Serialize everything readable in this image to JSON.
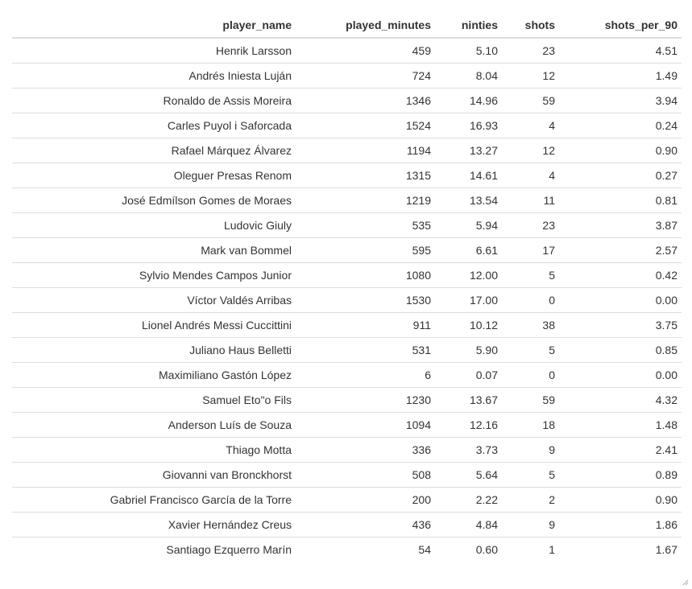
{
  "table": {
    "columns": [
      "player_name",
      "played_minutes",
      "ninties",
      "shots",
      "shots_per_90"
    ],
    "rows": [
      [
        "Henrik Larsson",
        "459",
        "5.10",
        "23",
        "4.51"
      ],
      [
        "Andrés Iniesta Luján",
        "724",
        "8.04",
        "12",
        "1.49"
      ],
      [
        "Ronaldo de Assis Moreira",
        "1346",
        "14.96",
        "59",
        "3.94"
      ],
      [
        "Carles Puyol i Saforcada",
        "1524",
        "16.93",
        "4",
        "0.24"
      ],
      [
        "Rafael Márquez Álvarez",
        "1194",
        "13.27",
        "12",
        "0.90"
      ],
      [
        "Oleguer Presas Renom",
        "1315",
        "14.61",
        "4",
        "0.27"
      ],
      [
        "José Edmílson Gomes de Moraes",
        "1219",
        "13.54",
        "11",
        "0.81"
      ],
      [
        "Ludovic Giuly",
        "535",
        "5.94",
        "23",
        "3.87"
      ],
      [
        "Mark van Bommel",
        "595",
        "6.61",
        "17",
        "2.57"
      ],
      [
        "Sylvio Mendes Campos Junior",
        "1080",
        "12.00",
        "5",
        "0.42"
      ],
      [
        "Víctor Valdés Arribas",
        "1530",
        "17.00",
        "0",
        "0.00"
      ],
      [
        "Lionel Andrés Messi Cuccittini",
        "911",
        "10.12",
        "38",
        "3.75"
      ],
      [
        "Juliano Haus Belletti",
        "531",
        "5.90",
        "5",
        "0.85"
      ],
      [
        "Maximiliano Gastón López",
        "6",
        "0.07",
        "0",
        "0.00"
      ],
      [
        "Samuel Eto\"o Fils",
        "1230",
        "13.67",
        "59",
        "4.32"
      ],
      [
        "Anderson Luís de Souza",
        "1094",
        "12.16",
        "18",
        "1.48"
      ],
      [
        "Thiago Motta",
        "336",
        "3.73",
        "9",
        "2.41"
      ],
      [
        "Giovanni van Bronckhorst",
        "508",
        "5.64",
        "5",
        "0.89"
      ],
      [
        "Gabriel Francisco García de la Torre",
        "200",
        "2.22",
        "2",
        "0.90"
      ],
      [
        "Xavier Hernández Creus",
        "436",
        "4.84",
        "9",
        "1.86"
      ],
      [
        "Santiago Ezquerro Marín",
        "54",
        "0.60",
        "1",
        "1.67"
      ]
    ]
  },
  "icons": {
    "resize_grip": "resize-grip-icon"
  }
}
